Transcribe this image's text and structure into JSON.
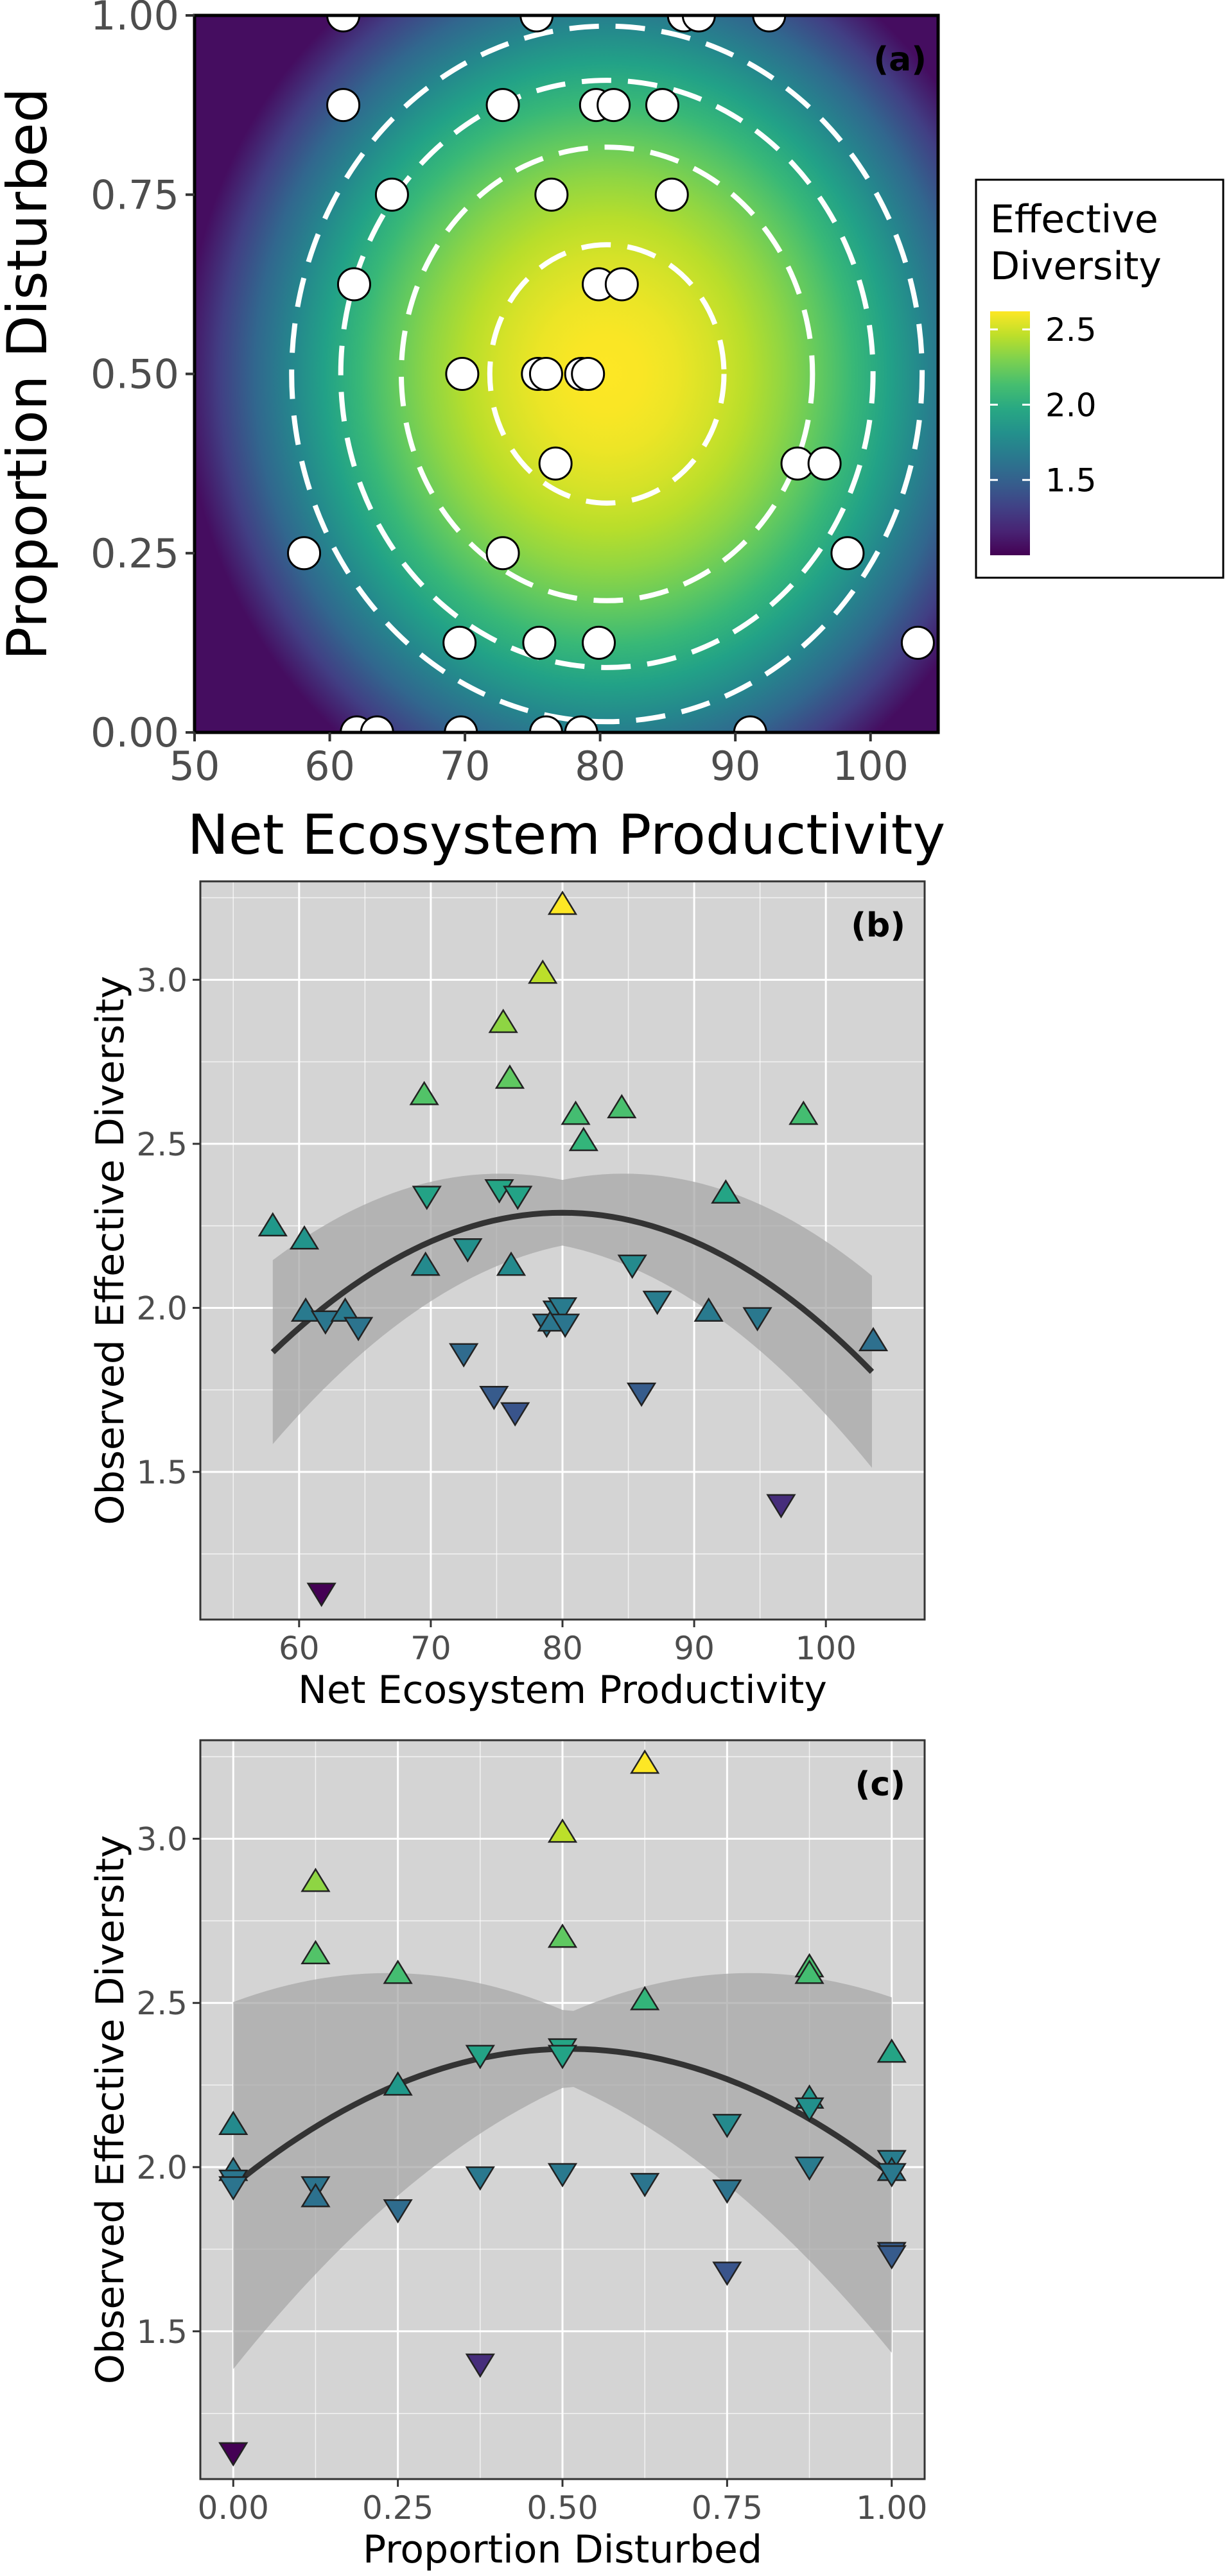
{
  "colors": {
    "viridis_low": "#440154",
    "viridis_mid": "#21918c",
    "viridis_high": "#fde725",
    "panel_grey": "#d4d4d4",
    "grid": "#ffffff",
    "fit_line": "#333333",
    "ribbon": "#a8a8a8"
  },
  "chart_data": [
    {
      "id": "a",
      "type": "heatmap",
      "tag": "(a)",
      "xlabel": "Net Ecosystem Productivity",
      "ylabel": "Proportion Disturbed",
      "xlim": [
        50,
        105
      ],
      "ylim": [
        0,
        1
      ],
      "xticks": [
        50,
        60,
        70,
        80,
        90,
        100
      ],
      "xtick_labels": [
        "50",
        "60",
        "70",
        "80",
        "90",
        "100"
      ],
      "yticks": [
        0,
        0.25,
        0.5,
        0.75,
        1
      ],
      "ytick_labels": [
        "0.00",
        "0.25",
        "0.50",
        "0.75",
        "1.00"
      ],
      "surface": {
        "peak_x": 80.5,
        "peak_y": 0.5,
        "peak_value": 2.62,
        "scale_x": 25,
        "scale_y": 0.52
      },
      "contour_levels": [
        2.5,
        2.25,
        2.0,
        1.75
      ],
      "legend": {
        "title_lines": [
          "Effective",
          "Diversity"
        ],
        "ticks": [
          2.5,
          2.0,
          1.5
        ],
        "tick_labels": [
          "2.5",
          "2.0",
          "1.5"
        ],
        "range": [
          1.0,
          2.62
        ]
      },
      "points": [
        {
          "x": 61.0,
          "y": 1.0
        },
        {
          "x": 75.3,
          "y": 1.0
        },
        {
          "x": 86.2,
          "y": 1.0
        },
        {
          "x": 87.3,
          "y": 1.0
        },
        {
          "x": 92.5,
          "y": 1.0
        },
        {
          "x": 61.0,
          "y": 0.875
        },
        {
          "x": 72.8,
          "y": 0.875
        },
        {
          "x": 79.7,
          "y": 0.875
        },
        {
          "x": 81.0,
          "y": 0.875
        },
        {
          "x": 84.6,
          "y": 0.875
        },
        {
          "x": 64.6,
          "y": 0.75
        },
        {
          "x": 76.4,
          "y": 0.75
        },
        {
          "x": 85.3,
          "y": 0.75
        },
        {
          "x": 61.8,
          "y": 0.625
        },
        {
          "x": 79.9,
          "y": 0.625
        },
        {
          "x": 81.6,
          "y": 0.625
        },
        {
          "x": 69.8,
          "y": 0.5
        },
        {
          "x": 75.4,
          "y": 0.5
        },
        {
          "x": 76.0,
          "y": 0.5
        },
        {
          "x": 78.6,
          "y": 0.5
        },
        {
          "x": 79.1,
          "y": 0.5
        },
        {
          "x": 76.7,
          "y": 0.375
        },
        {
          "x": 94.6,
          "y": 0.375
        },
        {
          "x": 96.6,
          "y": 0.375
        },
        {
          "x": 58.1,
          "y": 0.25
        },
        {
          "x": 72.8,
          "y": 0.25
        },
        {
          "x": 98.3,
          "y": 0.25
        },
        {
          "x": 69.6,
          "y": 0.125
        },
        {
          "x": 75.5,
          "y": 0.125
        },
        {
          "x": 79.9,
          "y": 0.125
        },
        {
          "x": 103.5,
          "y": 0.125
        },
        {
          "x": 62.0,
          "y": 0.0
        },
        {
          "x": 63.5,
          "y": 0.0
        },
        {
          "x": 69.7,
          "y": 0.0
        },
        {
          "x": 76.0,
          "y": 0.0
        },
        {
          "x": 78.6,
          "y": 0.0
        },
        {
          "x": 91.1,
          "y": 0.0
        }
      ]
    },
    {
      "id": "b",
      "type": "scatter",
      "tag": "(b)",
      "xlabel": "Net Ecosystem Productivity",
      "ylabel": "Observed Effective Diversity",
      "xlim": [
        52.5,
        107.5
      ],
      "ylim": [
        1.05,
        3.3
      ],
      "xticks": [
        60,
        70,
        80,
        90,
        100
      ],
      "xtick_labels": [
        "60",
        "70",
        "80",
        "90",
        "100"
      ],
      "yticks": [
        1.5,
        2.0,
        2.5,
        3.0
      ],
      "ytick_labels": [
        "1.5",
        "2.0",
        "2.5",
        "3.0"
      ],
      "fit": {
        "x_range": [
          58,
          103.5
        ],
        "peak_x": 80,
        "peak_y": 2.29,
        "curvature": 0.000878,
        "band_half_width_min": 0.1,
        "band_half_width_slope": 0.0082
      },
      "points": [
        {
          "x": 80.0,
          "y": 3.23,
          "shape": "up"
        },
        {
          "x": 78.5,
          "y": 3.02,
          "shape": "up"
        },
        {
          "x": 75.5,
          "y": 2.87,
          "shape": "up"
        },
        {
          "x": 76.0,
          "y": 2.7,
          "shape": "up"
        },
        {
          "x": 69.5,
          "y": 2.65,
          "shape": "up"
        },
        {
          "x": 84.5,
          "y": 2.61,
          "shape": "up"
        },
        {
          "x": 81.0,
          "y": 2.59,
          "shape": "up"
        },
        {
          "x": 98.3,
          "y": 2.59,
          "shape": "up"
        },
        {
          "x": 81.6,
          "y": 2.51,
          "shape": "up"
        },
        {
          "x": 69.7,
          "y": 2.34,
          "shape": "down"
        },
        {
          "x": 75.2,
          "y": 2.36,
          "shape": "down"
        },
        {
          "x": 76.6,
          "y": 2.34,
          "shape": "down"
        },
        {
          "x": 92.4,
          "y": 2.35,
          "shape": "up"
        },
        {
          "x": 58.0,
          "y": 2.25,
          "shape": "up"
        },
        {
          "x": 60.4,
          "y": 2.21,
          "shape": "up"
        },
        {
          "x": 72.8,
          "y": 2.18,
          "shape": "down"
        },
        {
          "x": 69.6,
          "y": 2.13,
          "shape": "up"
        },
        {
          "x": 76.1,
          "y": 2.13,
          "shape": "up"
        },
        {
          "x": 85.3,
          "y": 2.13,
          "shape": "down"
        },
        {
          "x": 87.2,
          "y": 2.02,
          "shape": "down"
        },
        {
          "x": 60.5,
          "y": 1.99,
          "shape": "up"
        },
        {
          "x": 62.0,
          "y": 1.96,
          "shape": "down"
        },
        {
          "x": 63.5,
          "y": 1.99,
          "shape": "up"
        },
        {
          "x": 64.5,
          "y": 1.94,
          "shape": "down"
        },
        {
          "x": 78.8,
          "y": 1.95,
          "shape": "down"
        },
        {
          "x": 79.2,
          "y": 1.96,
          "shape": "up"
        },
        {
          "x": 79.6,
          "y": 1.99,
          "shape": "down"
        },
        {
          "x": 80.0,
          "y": 2.0,
          "shape": "down"
        },
        {
          "x": 80.2,
          "y": 1.95,
          "shape": "down"
        },
        {
          "x": 91.1,
          "y": 1.99,
          "shape": "up"
        },
        {
          "x": 94.8,
          "y": 1.97,
          "shape": "down"
        },
        {
          "x": 103.6,
          "y": 1.9,
          "shape": "up"
        },
        {
          "x": 72.5,
          "y": 1.86,
          "shape": "down"
        },
        {
          "x": 74.8,
          "y": 1.73,
          "shape": "down"
        },
        {
          "x": 76.4,
          "y": 1.68,
          "shape": "down"
        },
        {
          "x": 86.0,
          "y": 1.74,
          "shape": "down"
        },
        {
          "x": 96.6,
          "y": 1.4,
          "shape": "down"
        },
        {
          "x": 61.7,
          "y": 1.13,
          "shape": "down"
        }
      ]
    },
    {
      "id": "c",
      "type": "scatter",
      "tag": "(c)",
      "xlabel": "Proportion Disturbed",
      "ylabel": "Observed Effective Diversity",
      "xlim": [
        -0.05,
        1.05
      ],
      "ylim": [
        1.05,
        3.3
      ],
      "xticks": [
        0,
        0.25,
        0.5,
        0.75,
        1
      ],
      "xtick_labels": [
        "0.00",
        "0.25",
        "0.50",
        "0.75",
        "1.00"
      ],
      "yticks": [
        1.5,
        2.0,
        2.5,
        3.0
      ],
      "ytick_labels": [
        "1.5",
        "2.0",
        "2.5",
        "3.0"
      ],
      "fit": {
        "x_range": [
          0,
          1
        ],
        "peak_x": 0.51,
        "peak_y": 2.36,
        "curvature": 1.6,
        "band_half_width_min": 0.11,
        "band_half_width_slope": 0.88
      },
      "points": [
        {
          "x": 0.625,
          "y": 3.23,
          "shape": "up"
        },
        {
          "x": 0.5,
          "y": 3.02,
          "shape": "up"
        },
        {
          "x": 0.125,
          "y": 2.87,
          "shape": "up"
        },
        {
          "x": 0.5,
          "y": 2.7,
          "shape": "up"
        },
        {
          "x": 0.125,
          "y": 2.65,
          "shape": "up"
        },
        {
          "x": 0.875,
          "y": 2.61,
          "shape": "up"
        },
        {
          "x": 0.875,
          "y": 2.59,
          "shape": "up"
        },
        {
          "x": 0.25,
          "y": 2.59,
          "shape": "up"
        },
        {
          "x": 0.625,
          "y": 2.51,
          "shape": "up"
        },
        {
          "x": 0.375,
          "y": 2.34,
          "shape": "down"
        },
        {
          "x": 0.5,
          "y": 2.36,
          "shape": "down"
        },
        {
          "x": 0.5,
          "y": 2.34,
          "shape": "down"
        },
        {
          "x": 1.0,
          "y": 2.35,
          "shape": "up"
        },
        {
          "x": 0.25,
          "y": 2.25,
          "shape": "up"
        },
        {
          "x": 0.875,
          "y": 2.21,
          "shape": "up"
        },
        {
          "x": 0.875,
          "y": 2.18,
          "shape": "down"
        },
        {
          "x": 0.0,
          "y": 2.13,
          "shape": "up"
        },
        {
          "x": 0.75,
          "y": 2.13,
          "shape": "down"
        },
        {
          "x": 1.0,
          "y": 2.02,
          "shape": "down"
        },
        {
          "x": 0.875,
          "y": 2.0,
          "shape": "down"
        },
        {
          "x": 0.0,
          "y": 1.99,
          "shape": "up"
        },
        {
          "x": 0.0,
          "y": 1.96,
          "shape": "down"
        },
        {
          "x": 0.0,
          "y": 1.94,
          "shape": "down"
        },
        {
          "x": 0.125,
          "y": 1.94,
          "shape": "down"
        },
        {
          "x": 0.125,
          "y": 1.91,
          "shape": "up"
        },
        {
          "x": 0.375,
          "y": 1.97,
          "shape": "down"
        },
        {
          "x": 0.5,
          "y": 1.98,
          "shape": "down"
        },
        {
          "x": 0.625,
          "y": 1.95,
          "shape": "down"
        },
        {
          "x": 0.75,
          "y": 1.93,
          "shape": "down"
        },
        {
          "x": 1.0,
          "y": 1.99,
          "shape": "up"
        },
        {
          "x": 1.0,
          "y": 1.98,
          "shape": "down"
        },
        {
          "x": 0.25,
          "y": 1.87,
          "shape": "down"
        },
        {
          "x": 0.75,
          "y": 1.68,
          "shape": "down"
        },
        {
          "x": 1.0,
          "y": 1.74,
          "shape": "down"
        },
        {
          "x": 1.0,
          "y": 1.73,
          "shape": "down"
        },
        {
          "x": 0.375,
          "y": 1.4,
          "shape": "down"
        },
        {
          "x": 0.0,
          "y": 1.13,
          "shape": "down"
        }
      ]
    }
  ]
}
